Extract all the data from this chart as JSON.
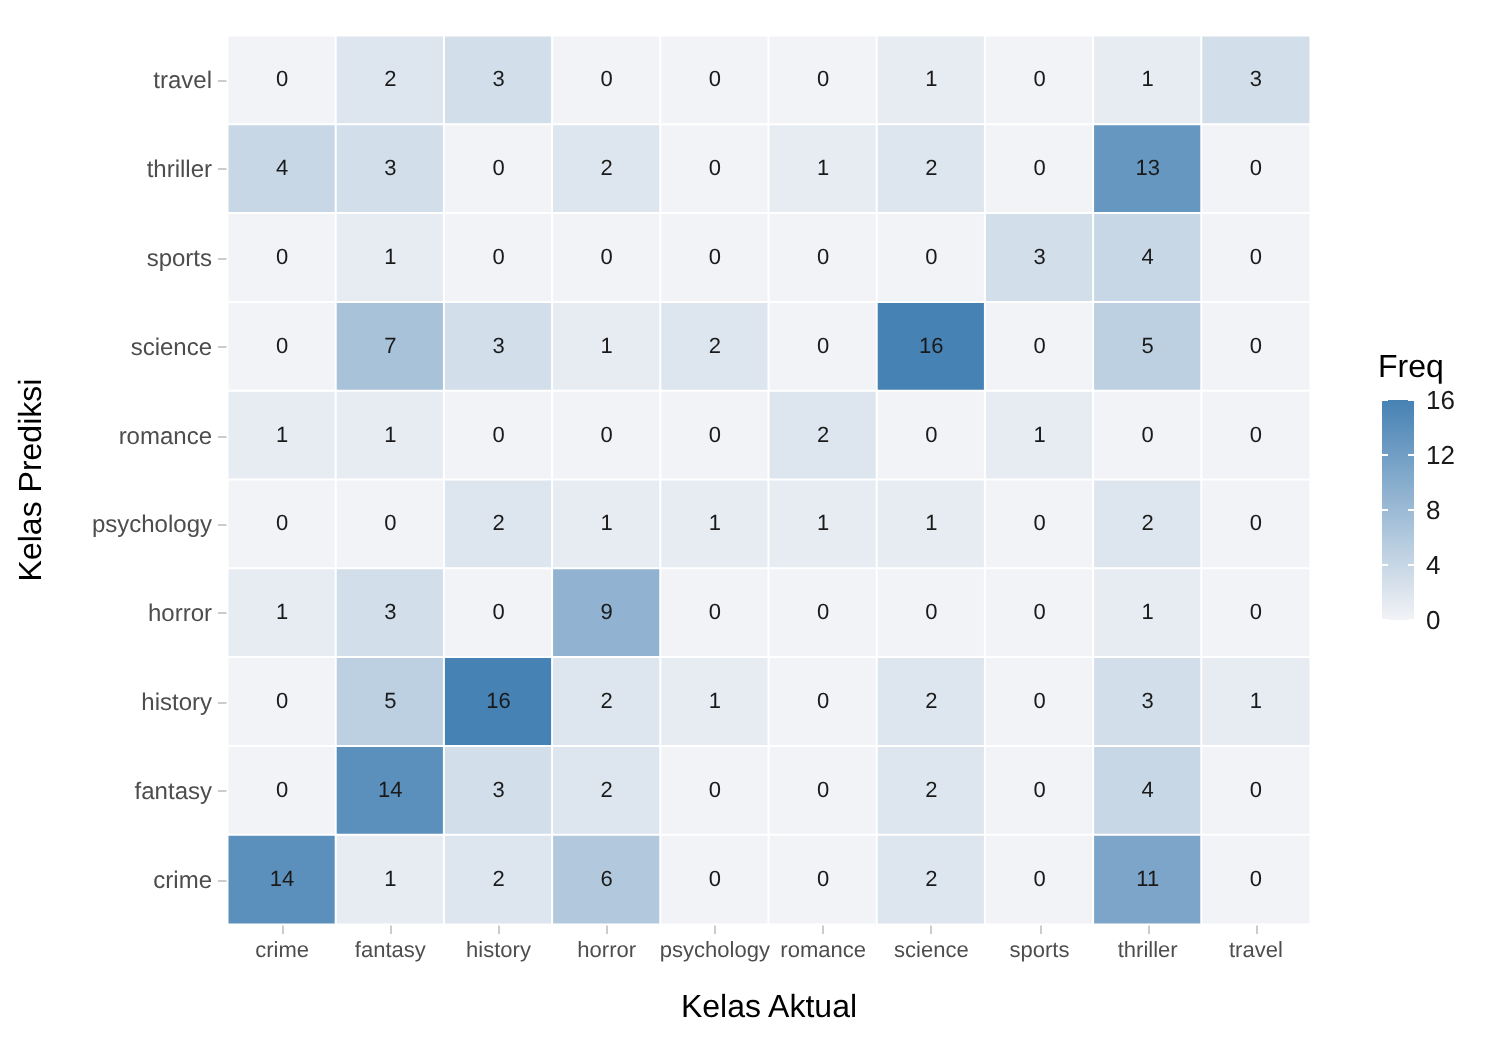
{
  "chart_data": {
    "type": "heatmap",
    "xlabel": "Kelas Aktual",
    "ylabel": "Kelas Prediksi",
    "clabel": "Freq",
    "categories": [
      "crime",
      "fantasy",
      "history",
      "horror",
      "psychology",
      "romance",
      "science",
      "sports",
      "thriller",
      "travel"
    ],
    "y_categories": [
      "travel",
      "thriller",
      "sports",
      "science",
      "romance",
      "psychology",
      "horror",
      "history",
      "fantasy",
      "crime"
    ],
    "cells": [
      [
        0,
        2,
        3,
        0,
        0,
        0,
        1,
        0,
        1,
        3
      ],
      [
        4,
        3,
        0,
        2,
        0,
        1,
        2,
        0,
        13,
        0
      ],
      [
        0,
        1,
        0,
        0,
        0,
        0,
        0,
        3,
        4,
        0
      ],
      [
        0,
        7,
        3,
        1,
        2,
        0,
        16,
        0,
        5,
        0
      ],
      [
        1,
        1,
        0,
        0,
        0,
        2,
        0,
        1,
        0,
        0
      ],
      [
        0,
        0,
        2,
        1,
        1,
        1,
        1,
        0,
        2,
        0
      ],
      [
        1,
        3,
        0,
        9,
        0,
        0,
        0,
        0,
        1,
        0
      ],
      [
        0,
        5,
        16,
        2,
        1,
        0,
        2,
        0,
        3,
        1
      ],
      [
        0,
        14,
        3,
        2,
        0,
        0,
        2,
        0,
        4,
        0
      ],
      [
        14,
        1,
        2,
        6,
        0,
        0,
        2,
        0,
        11,
        0
      ]
    ],
    "clim": [
      0,
      16
    ],
    "cticks": [
      0,
      4,
      8,
      12,
      16
    ],
    "data_labels": true
  }
}
